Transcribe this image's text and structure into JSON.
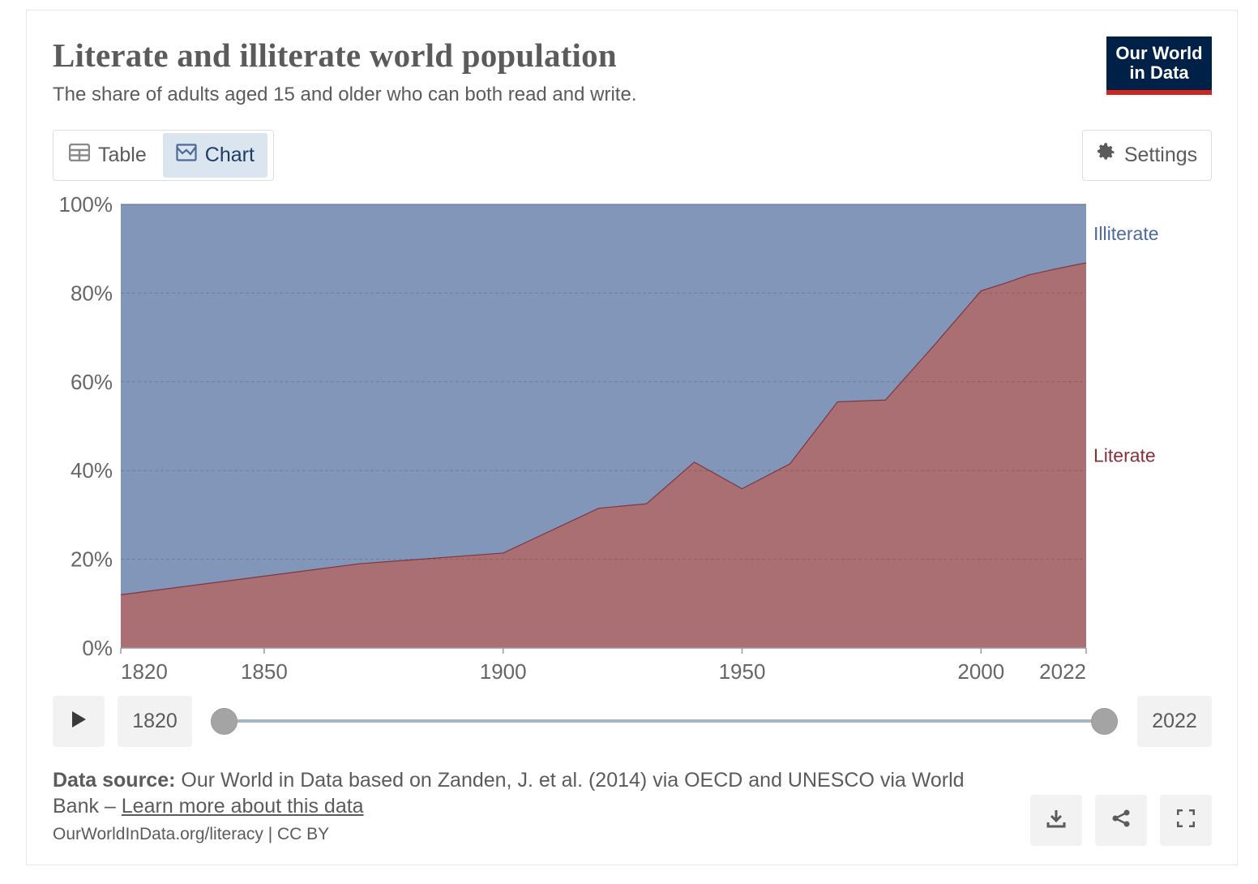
{
  "header": {
    "title": "Literate and illiterate world population",
    "subtitle": "The share of adults aged 15 and older who can both read and write.",
    "logo_line1": "Our World",
    "logo_line2": "in Data"
  },
  "tabs": [
    {
      "label": "Table",
      "icon": "table-icon",
      "active": false
    },
    {
      "label": "Chart",
      "icon": "chart-icon",
      "active": true
    }
  ],
  "settings_label": "Settings",
  "colors": {
    "literate": "#aa6f72",
    "literate_line": "#80343f",
    "illiterate": "#8296b9",
    "illiterate_label": "#4c6a9c",
    "literate_label": "#883039"
  },
  "chart_data": {
    "type": "area",
    "stacked": true,
    "ylim": [
      0,
      100
    ],
    "y_ticks": [
      "0%",
      "20%",
      "40%",
      "60%",
      "80%",
      "100%"
    ],
    "x_ticks": [
      "1820",
      "1850",
      "1900",
      "1950",
      "2000",
      "2022"
    ],
    "xlim": [
      1820,
      2022
    ],
    "x": [
      1820,
      1870,
      1900,
      1920,
      1930,
      1940,
      1950,
      1960,
      1970,
      1980,
      1990,
      2000,
      2005,
      2010,
      2015,
      2020,
      2022
    ],
    "series": [
      {
        "name": "Literate",
        "values": [
          12,
          19,
          21.4,
          31.5,
          32.5,
          41.9,
          35.9,
          41.5,
          55.5,
          55.9,
          68,
          80.5,
          82.2,
          84.1,
          85.3,
          86.4,
          86.8
        ]
      },
      {
        "name": "Illiterate",
        "values": [
          88,
          81,
          78.6,
          68.5,
          67.5,
          58.1,
          64.1,
          58.5,
          44.5,
          44.1,
          32,
          19.5,
          17.8,
          15.9,
          14.7,
          13.6,
          13.2
        ]
      }
    ],
    "grid": true,
    "legend": "right (inline labels)"
  },
  "timeline": {
    "start_label": "1820",
    "end_label": "2022"
  },
  "source": {
    "prefix": "Data source:",
    "text": " Our World in Data based on Zanden, J. et al. (2014) via OECD and UNESCO via World Bank – ",
    "link": "Learn more about this data"
  },
  "footer": {
    "url_text": "OurWorldInData.org/literacy | CC BY"
  },
  "actions": [
    {
      "name": "download-icon"
    },
    {
      "name": "share-icon"
    },
    {
      "name": "fullscreen-icon"
    }
  ]
}
